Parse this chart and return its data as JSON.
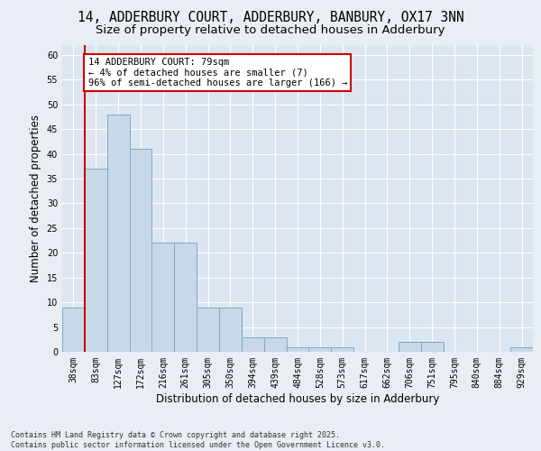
{
  "title_line1": "14, ADDERBURY COURT, ADDERBURY, BANBURY, OX17 3NN",
  "title_line2": "Size of property relative to detached houses in Adderbury",
  "xlabel": "Distribution of detached houses by size in Adderbury",
  "ylabel": "Number of detached properties",
  "categories": [
    "38sqm",
    "83sqm",
    "127sqm",
    "172sqm",
    "216sqm",
    "261sqm",
    "305sqm",
    "350sqm",
    "394sqm",
    "439sqm",
    "484sqm",
    "528sqm",
    "573sqm",
    "617sqm",
    "662sqm",
    "706sqm",
    "751sqm",
    "795sqm",
    "840sqm",
    "884sqm",
    "929sqm"
  ],
  "values": [
    9,
    37,
    48,
    41,
    22,
    22,
    9,
    9,
    3,
    3,
    1,
    1,
    1,
    0,
    0,
    2,
    2,
    0,
    0,
    0,
    1
  ],
  "bar_color": "#c8d8e8",
  "bar_edge_color": "#7aaac8",
  "vline_x": 0.5,
  "vline_color": "#cc0000",
  "annotation_text": "14 ADDERBURY COURT: 79sqm\n← 4% of detached houses are smaller (7)\n96% of semi-detached houses are larger (166) →",
  "annotation_box_color": "#cc0000",
  "ylim": [
    0,
    62
  ],
  "yticks": [
    0,
    5,
    10,
    15,
    20,
    25,
    30,
    35,
    40,
    45,
    50,
    55,
    60
  ],
  "background_color": "#e8eef4",
  "plot_background": "#dce6f0",
  "grid_color": "#ffffff",
  "footer_line1": "Contains HM Land Registry data © Crown copyright and database right 2025.",
  "footer_line2": "Contains public sector information licensed under the Open Government Licence v3.0.",
  "title_fontsize": 10.5,
  "subtitle_fontsize": 9.5,
  "tick_fontsize": 7,
  "label_fontsize": 8.5,
  "footer_fontsize": 6.0
}
